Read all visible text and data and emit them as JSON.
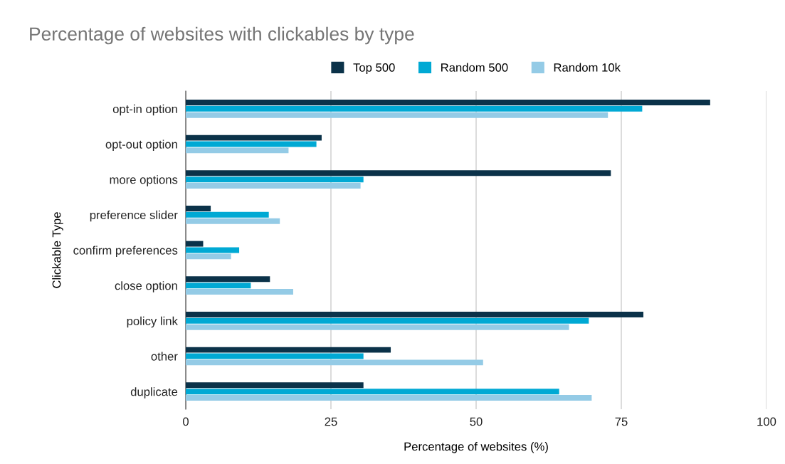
{
  "chart_data": {
    "type": "bar",
    "orientation": "horizontal",
    "title": "Percentage of websites with clickables by type",
    "xlabel": "Percentage of websites (%)",
    "ylabel": "Clickable Type",
    "categories": [
      "opt-in option",
      "opt-out option",
      "more options",
      "preference slider",
      "confirm preferences",
      "close option",
      "policy link",
      "other",
      "duplicate"
    ],
    "series": [
      {
        "name": "Top 500",
        "color": "#0b3249",
        "values": [
          90.3,
          23.4,
          73.2,
          4.3,
          3.0,
          14.5,
          78.8,
          35.3,
          30.6
        ]
      },
      {
        "name": "Random 500",
        "color": "#00a9d4",
        "values": [
          78.6,
          22.5,
          30.6,
          14.3,
          9.2,
          11.2,
          69.4,
          30.6,
          64.3
        ]
      },
      {
        "name": "Random 10k",
        "color": "#94cbe6",
        "values": [
          72.7,
          17.7,
          30.1,
          16.2,
          7.8,
          18.5,
          66.0,
          51.2,
          69.9
        ]
      }
    ],
    "xlim": [
      0,
      100
    ],
    "xticks": [
      0,
      25,
      50,
      75,
      100
    ],
    "grid": "x",
    "legend": "top"
  }
}
